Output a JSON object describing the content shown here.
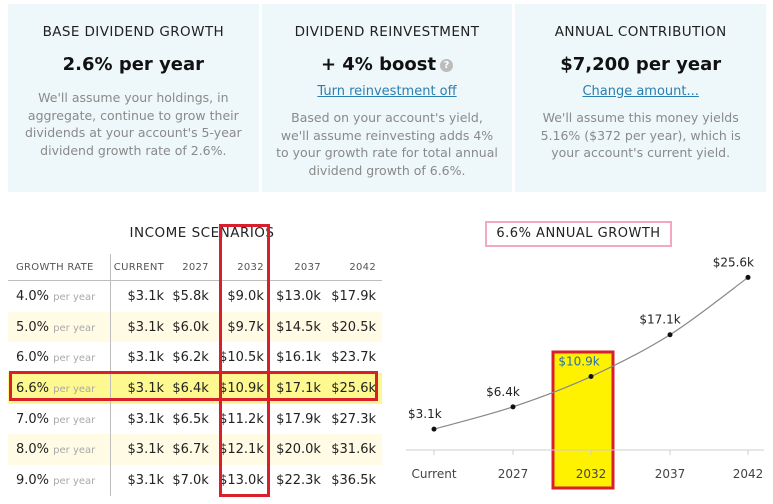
{
  "panels": [
    {
      "id": "base",
      "heading": "BASE DIVIDEND GROWTH",
      "value": "2.6% per year",
      "body": "We'll assume your holdings, in aggregate, continue to grow their dividends at your account's 5-year dividend growth rate of 2.6%."
    },
    {
      "id": "reinvest",
      "heading": "DIVIDEND REINVESTMENT",
      "value": "+ 4% boost",
      "help_icon": "question-circle-icon",
      "link": "Turn reinvestment off",
      "body": "Based on your account's yield, we'll assume reinvesting adds 4% to your growth rate for total annual dividend growth of 6.6%."
    },
    {
      "id": "contrib",
      "heading": "ANNUAL CONTRIBUTION",
      "value": "$7,200 per year",
      "link": "Change amount...",
      "body": "We'll assume this money yields 5.16% ($372 per year), which is your account's current yield."
    }
  ],
  "scenarios": {
    "title": "INCOME SCENARIOS",
    "headers": [
      "GROWTH RATE",
      "CURRENT",
      "2027",
      "2032",
      "2037",
      "2042"
    ],
    "per_label": "per year",
    "rows": [
      {
        "rate": "4.0%",
        "values": [
          "$3.1k",
          "$5.8k",
          "$9.0k",
          "$13.0k",
          "$17.9k"
        ]
      },
      {
        "rate": "5.0%",
        "values": [
          "$3.1k",
          "$6.0k",
          "$9.7k",
          "$14.5k",
          "$20.5k"
        ]
      },
      {
        "rate": "6.0%",
        "values": [
          "$3.1k",
          "$6.2k",
          "$10.5k",
          "$16.1k",
          "$23.7k"
        ]
      },
      {
        "rate": "6.6%",
        "values": [
          "$3.1k",
          "$6.4k",
          "$10.9k",
          "$17.1k",
          "$25.6k"
        ],
        "selected": true
      },
      {
        "rate": "7.0%",
        "values": [
          "$3.1k",
          "$6.5k",
          "$11.2k",
          "$17.9k",
          "$27.3k"
        ]
      },
      {
        "rate": "8.0%",
        "values": [
          "$3.1k",
          "$6.7k",
          "$12.1k",
          "$20.0k",
          "$31.6k"
        ]
      },
      {
        "rate": "9.0%",
        "values": [
          "$3.1k",
          "$7.0k",
          "$13.0k",
          "$22.3k",
          "$36.5k"
        ]
      }
    ]
  },
  "chart_data": {
    "type": "line",
    "title": "6.6% ANNUAL GROWTH",
    "categories": [
      "Current",
      "2027",
      "2032",
      "2037",
      "2042"
    ],
    "values": [
      3.1,
      6.4,
      10.9,
      17.1,
      25.6
    ],
    "labels": [
      "$3.1k",
      "$6.4k",
      "$10.9k",
      "$17.1k",
      "$25.6k"
    ],
    "highlight": "2032",
    "ylim": [
      0,
      27
    ],
    "grid": false,
    "colors": {
      "line": "#888888",
      "highlight_fill": "#fff200",
      "highlight_border": "#d81f2b"
    }
  }
}
